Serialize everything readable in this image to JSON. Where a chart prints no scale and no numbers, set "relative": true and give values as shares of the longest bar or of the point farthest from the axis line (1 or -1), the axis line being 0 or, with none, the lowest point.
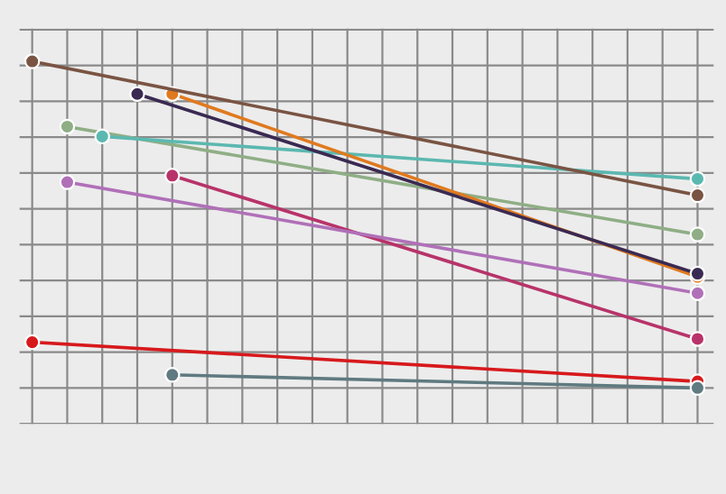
{
  "chart_data": {
    "type": "line",
    "relative": true,
    "grid": true,
    "marker": "circle",
    "line_style": "solid",
    "categories": [
      null,
      null,
      null,
      null,
      null,
      null,
      null,
      null,
      null,
      null,
      null,
      null,
      null,
      null,
      null,
      null,
      null,
      null,
      null,
      null
    ],
    "series": [
      {
        "color": "#7a5443",
        "values": [
          1.0,
          null,
          null,
          null,
          null,
          null,
          null,
          null,
          null,
          null,
          null,
          null,
          null,
          null,
          null,
          null,
          null,
          null,
          null,
          0.59
        ]
      },
      {
        "color": "#3a2a52",
        "values": [
          null,
          null,
          null,
          0.9,
          null,
          null,
          null,
          null,
          null,
          null,
          null,
          null,
          null,
          null,
          null,
          null,
          null,
          null,
          null,
          0.35
        ]
      },
      {
        "color": "#e07a1f",
        "values": [
          null,
          null,
          null,
          null,
          0.9,
          null,
          null,
          null,
          null,
          null,
          null,
          null,
          null,
          null,
          null,
          null,
          null,
          null,
          null,
          0.34
        ]
      },
      {
        "color": "#5bb8b0",
        "values": [
          null,
          null,
          0.77,
          null,
          null,
          null,
          null,
          null,
          null,
          null,
          null,
          null,
          null,
          null,
          null,
          null,
          null,
          null,
          null,
          0.64
        ]
      },
      {
        "color": "#8fae85",
        "values": [
          null,
          0.8,
          null,
          null,
          null,
          null,
          null,
          null,
          null,
          null,
          null,
          null,
          null,
          null,
          null,
          null,
          null,
          null,
          null,
          0.47
        ]
      },
      {
        "color": "#b070b8",
        "values": [
          null,
          0.63,
          null,
          null,
          null,
          null,
          null,
          null,
          null,
          null,
          null,
          null,
          null,
          null,
          null,
          null,
          null,
          null,
          null,
          0.29
        ]
      },
      {
        "color": "#b8336a",
        "values": [
          null,
          null,
          null,
          null,
          0.65,
          null,
          null,
          null,
          null,
          null,
          null,
          null,
          null,
          null,
          null,
          null,
          null,
          null,
          null,
          0.15
        ]
      },
      {
        "color": "#5f7a80",
        "values": [
          null,
          null,
          null,
          null,
          0.04,
          null,
          null,
          null,
          null,
          null,
          null,
          null,
          null,
          null,
          null,
          null,
          null,
          null,
          null,
          0.0
        ]
      },
      {
        "color": "#d7191c",
        "values": [
          0.14,
          null,
          null,
          null,
          null,
          null,
          null,
          null,
          null,
          null,
          null,
          null,
          null,
          null,
          null,
          null,
          null,
          null,
          null,
          0.02
        ]
      }
    ]
  }
}
